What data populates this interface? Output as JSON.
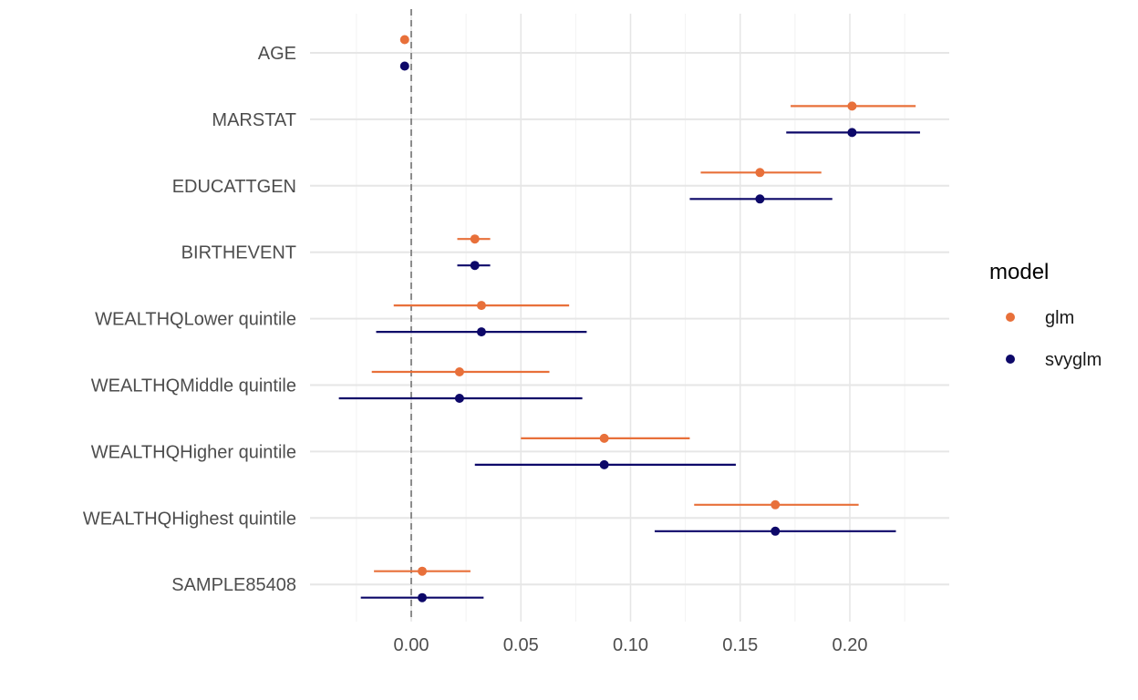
{
  "chart_data": {
    "type": "scatter",
    "subtype": "coefficient-plot-with-error-bars",
    "title": "",
    "xlabel": "",
    "ylabel": "",
    "xlim": [
      -0.045,
      0.245
    ],
    "x_ticks": [
      "0.00",
      "0.05",
      "0.10",
      "0.15",
      "0.20"
    ],
    "x_tick_values": [
      0.0,
      0.05,
      0.1,
      0.15,
      0.2
    ],
    "reference_line": 0,
    "grid": true,
    "legend": {
      "title": "model",
      "placement": "right"
    },
    "categories": [
      "AGE",
      "MARSTAT",
      "EDUCATTGEN",
      "BIRTHEVENT",
      "WEALTHQLower quintile",
      "WEALTHQMiddle quintile",
      "WEALTHQHigher quintile",
      "WEALTHQHighest quintile",
      "SAMPLE85408"
    ],
    "series": [
      {
        "name": "glm",
        "color": "#E8703A",
        "estimate": [
          -0.003,
          0.201,
          0.159,
          0.029,
          0.032,
          0.022,
          0.088,
          0.166,
          0.005
        ],
        "lower": [
          -0.003,
          0.173,
          0.132,
          0.021,
          -0.008,
          -0.018,
          0.05,
          0.129,
          -0.017
        ],
        "upper": [
          -0.003,
          0.23,
          0.187,
          0.036,
          0.072,
          0.063,
          0.127,
          0.204,
          0.027
        ]
      },
      {
        "name": "svyglm",
        "color": "#0D0869",
        "estimate": [
          -0.003,
          0.201,
          0.159,
          0.029,
          0.032,
          0.022,
          0.088,
          0.166,
          0.005
        ],
        "lower": [
          -0.003,
          0.171,
          0.127,
          0.021,
          -0.016,
          -0.033,
          0.029,
          0.111,
          -0.023
        ],
        "upper": [
          -0.003,
          0.232,
          0.192,
          0.036,
          0.08,
          0.078,
          0.148,
          0.221,
          0.033
        ]
      }
    ]
  }
}
